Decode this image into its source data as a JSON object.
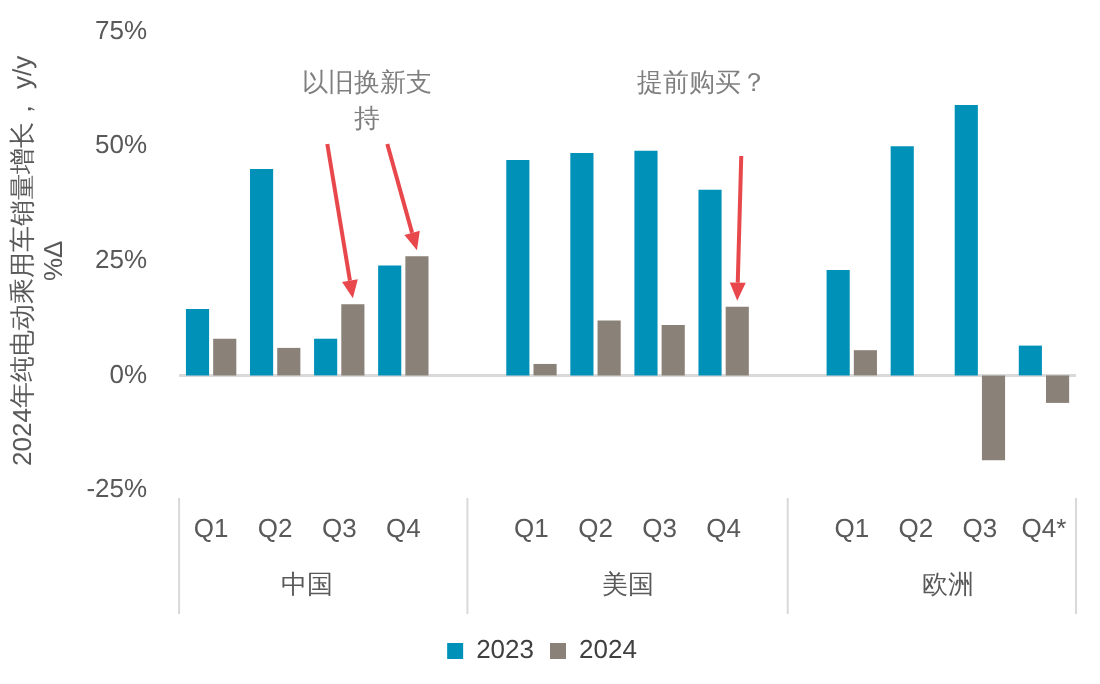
{
  "chart_data": {
    "type": "bar",
    "ylabel": "2024年纯电动乘用车销量增长， y/y %Δ",
    "categories": [
      "Q1",
      "Q2",
      "Q3",
      "Q4",
      null,
      "Q1",
      "Q2",
      "Q3",
      "Q4",
      null,
      "Q1",
      "Q2",
      "Q3",
      "Q4*"
    ],
    "series": [
      {
        "name": "2023",
        "color": "#0091b8",
        "values": [
          14.5,
          45,
          8,
          24,
          null,
          47,
          48.5,
          49,
          40.5,
          null,
          23,
          50,
          59,
          6.5
        ]
      },
      {
        "name": "2024",
        "color": "#8a8178",
        "values": [
          8,
          6,
          15.5,
          26,
          null,
          2.5,
          12,
          11,
          15,
          null,
          5.5,
          null,
          -18.5,
          -6
        ]
      }
    ],
    "ylim": [
      -25,
      75
    ],
    "yticks": [
      {
        "value": -25,
        "label": "-25%"
      },
      {
        "value": 0,
        "label": "0%"
      },
      {
        "value": 25,
        "label": "25%"
      },
      {
        "value": 50,
        "label": "50%"
      },
      {
        "value": 75,
        "label": "75%"
      }
    ],
    "ref_lines": [
      {
        "axis": "y",
        "value": 0,
        "color": "#d9d9d9"
      }
    ],
    "annotations": [
      "以旧换新支持",
      "提前购买？",
      "中国",
      "美国",
      "欧洲"
    ],
    "grid": false,
    "legend": "bottom"
  }
}
